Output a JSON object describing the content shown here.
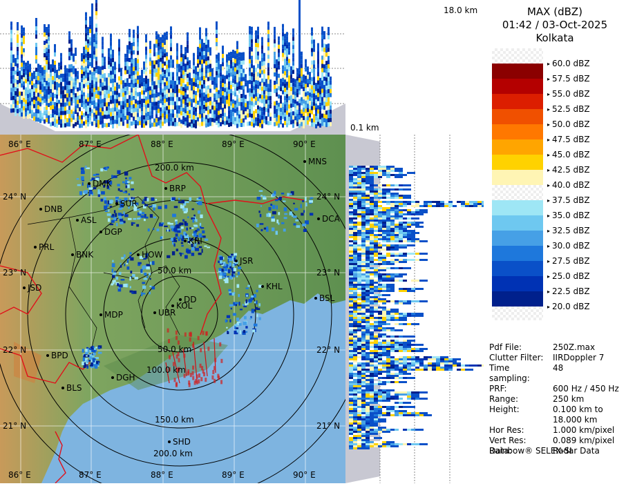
{
  "header": {
    "product": "MAX (dBZ)",
    "datetime": "01:42 / 03-Oct-2025",
    "station": "Kolkata"
  },
  "heights": {
    "top": "18.0 km",
    "bottom": "0.1 km"
  },
  "legend": [
    {
      "label": "60.0 dBZ",
      "color": "#ffffff"
    },
    {
      "label": "57.5 dBZ",
      "color": "#8b0000"
    },
    {
      "label": "55.0 dBZ",
      "color": "#b40000"
    },
    {
      "label": "52.5 dBZ",
      "color": "#dc1e00"
    },
    {
      "label": "50.0 dBZ",
      "color": "#f05000"
    },
    {
      "label": "47.5 dBZ",
      "color": "#ff7800"
    },
    {
      "label": "45.0 dBZ",
      "color": "#ffa500"
    },
    {
      "label": "42.5 dBZ",
      "color": "#ffd200"
    },
    {
      "label": "40.0 dBZ",
      "color": "#fff5b4"
    },
    {
      "label": "37.5 dBZ",
      "color": "#ffffff"
    },
    {
      "label": "35.0 dBZ",
      "color": "#9ee6f5"
    },
    {
      "label": "32.5 dBZ",
      "color": "#6ec8f0"
    },
    {
      "label": "30.0 dBZ",
      "color": "#46a0e6"
    },
    {
      "label": "27.5 dBZ",
      "color": "#1e78dc"
    },
    {
      "label": "25.0 dBZ",
      "color": "#0a50c8"
    },
    {
      "label": "22.5 dBZ",
      "color": "#0032b4"
    },
    {
      "label": "20.0 dBZ",
      "color": "#00208c"
    }
  ],
  "meta": [
    {
      "key": "Pdf File:",
      "value": "250Z.max"
    },
    {
      "key": "Clutter Filter:",
      "value": "IIRDoppler 7"
    },
    {
      "key": "Time sampling:",
      "value": "48"
    },
    {
      "key": "PRF:",
      "value": "600 Hz / 450 Hz"
    },
    {
      "key": "Range:",
      "value": "250 km"
    },
    {
      "key": "Height:",
      "value": "0.100 km to"
    },
    {
      "key": "",
      "value": "18.000 km"
    },
    {
      "key": "Hor Res:",
      "value": "1.000 km/pixel"
    },
    {
      "key": "Vert Res:",
      "value": "0.089 km/pixel"
    },
    {
      "key": "Data:",
      "value": "Radar Data"
    }
  ],
  "footer": "Rainbow® SELEX-SI",
  "map": {
    "longitudes": [
      "86° E",
      "87° E",
      "88° E",
      "89° E",
      "90° E"
    ],
    "latitudes": [
      "24° N",
      "23° N",
      "22° N",
      "21° N"
    ],
    "range_rings": [
      "50.0 km",
      "100.0 km",
      "150.0 km",
      "200.0 km"
    ],
    "places": [
      "MNS",
      "DMK",
      "BRP",
      "SUR",
      "DNB",
      "ASL",
      "DCA",
      "DGP",
      "KRI",
      "PRL",
      "BNK",
      "HOW",
      "JSR",
      "KHL",
      "JSD",
      "DD",
      "KOL",
      "BSL",
      "MDP",
      "UBR",
      "BPD",
      "DGH",
      "BLS",
      "SHD"
    ],
    "colors": {
      "land": "#6f9a5e",
      "sea": "#7eb4e0",
      "ring": "#000000",
      "border": "#e0101a"
    }
  }
}
